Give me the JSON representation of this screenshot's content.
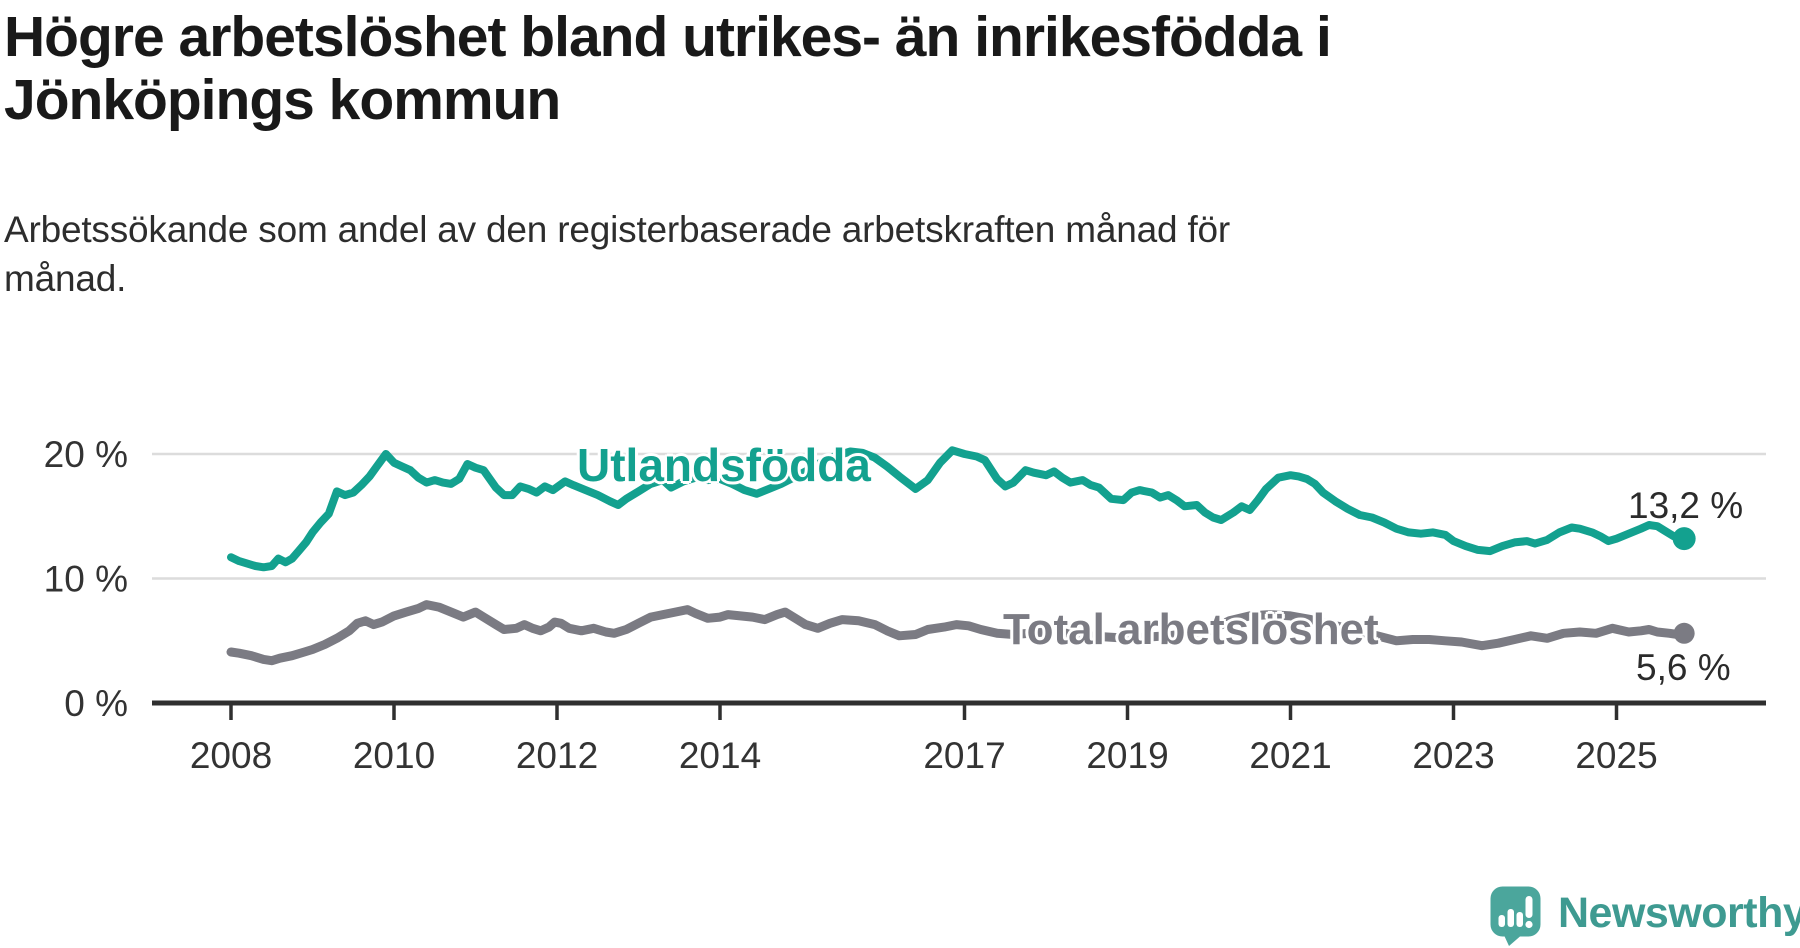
{
  "header": {
    "title_lines": [
      "Högre arbetslöshet bland utrikes- än inrikesfödda i",
      "Jönköpings kommun"
    ],
    "subtitle_lines": [
      "Arbetssökande som andel av den registerbaserade arbetskraften månad för",
      "månad."
    ]
  },
  "chart_data": {
    "type": "line",
    "title": "Högre arbetslöshet bland utrikes- än inrikesfödda i Jönköpings kommun",
    "subtitle": "Arbetssökande som andel av den registerbaserade arbetskraften månad för månad.",
    "xlabel": "",
    "ylabel": "",
    "x_axis": {
      "min": 2008,
      "max": 2026.3,
      "tick_values": [
        2008,
        2010,
        2012,
        2014,
        2017,
        2019,
        2021,
        2023,
        2025
      ],
      "tick_labels": [
        "2008",
        "2010",
        "2012",
        "2014",
        "2017",
        "2019",
        "2021",
        "2023",
        "2025"
      ]
    },
    "y_axis": {
      "min": 0,
      "max": 21.5,
      "tick_values": [
        0,
        10,
        20
      ],
      "tick_labels": [
        "0 %",
        "10 %",
        "20 %"
      ],
      "grid": true
    },
    "style": {
      "grid_color": "#dcdcdc",
      "axis_color": "#2f2f2f",
      "tick_label_color": "#333333"
    },
    "series": [
      {
        "name": "Utlandsfödda",
        "color": "#13a18f",
        "end_value": 13.2,
        "end_label": "13,2 %",
        "points": [
          [
            2008.0,
            11.7
          ],
          [
            2008.1,
            11.4
          ],
          [
            2008.2,
            11.2
          ],
          [
            2008.3,
            11.0
          ],
          [
            2008.4,
            10.9
          ],
          [
            2008.5,
            11.0
          ],
          [
            2008.58,
            11.6
          ],
          [
            2008.67,
            11.3
          ],
          [
            2008.75,
            11.6
          ],
          [
            2008.83,
            12.2
          ],
          [
            2008.92,
            12.9
          ],
          [
            2009.0,
            13.7
          ],
          [
            2009.1,
            14.5
          ],
          [
            2009.2,
            15.2
          ],
          [
            2009.3,
            17.0
          ],
          [
            2009.4,
            16.7
          ],
          [
            2009.5,
            16.9
          ],
          [
            2009.6,
            17.5
          ],
          [
            2009.7,
            18.2
          ],
          [
            2009.8,
            19.1
          ],
          [
            2009.9,
            20.0
          ],
          [
            2010.0,
            19.3
          ],
          [
            2010.1,
            19.0
          ],
          [
            2010.2,
            18.7
          ],
          [
            2010.3,
            18.1
          ],
          [
            2010.4,
            17.7
          ],
          [
            2010.5,
            17.9
          ],
          [
            2010.6,
            17.7
          ],
          [
            2010.7,
            17.6
          ],
          [
            2010.8,
            18.0
          ],
          [
            2010.9,
            19.2
          ],
          [
            2011.0,
            18.9
          ],
          [
            2011.1,
            18.7
          ],
          [
            2011.25,
            17.3
          ],
          [
            2011.35,
            16.7
          ],
          [
            2011.45,
            16.7
          ],
          [
            2011.55,
            17.4
          ],
          [
            2011.65,
            17.2
          ],
          [
            2011.75,
            16.9
          ],
          [
            2011.85,
            17.4
          ],
          [
            2011.95,
            17.1
          ],
          [
            2012.1,
            17.8
          ],
          [
            2012.2,
            17.5
          ],
          [
            2012.35,
            17.1
          ],
          [
            2012.5,
            16.7
          ],
          [
            2012.65,
            16.2
          ],
          [
            2012.75,
            15.9
          ],
          [
            2012.85,
            16.4
          ],
          [
            2013.0,
            17.0
          ],
          [
            2013.15,
            17.6
          ],
          [
            2013.3,
            17.9
          ],
          [
            2013.4,
            17.3
          ],
          [
            2013.55,
            17.8
          ],
          [
            2013.7,
            18.1
          ],
          [
            2013.85,
            17.9
          ],
          [
            2014.0,
            18.0
          ],
          [
            2014.15,
            17.6
          ],
          [
            2014.3,
            17.1
          ],
          [
            2014.45,
            16.8
          ],
          [
            2014.6,
            17.2
          ],
          [
            2014.75,
            17.6
          ],
          [
            2014.9,
            18.1
          ],
          [
            2015.05,
            18.6
          ],
          [
            2015.2,
            19.2
          ],
          [
            2015.4,
            19.8
          ],
          [
            2015.6,
            20.2
          ],
          [
            2015.75,
            20.1
          ],
          [
            2015.9,
            19.7
          ],
          [
            2016.05,
            19.0
          ],
          [
            2016.2,
            18.2
          ],
          [
            2016.4,
            17.2
          ],
          [
            2016.55,
            17.9
          ],
          [
            2016.7,
            19.3
          ],
          [
            2016.85,
            20.3
          ],
          [
            2017.0,
            20.0
          ],
          [
            2017.15,
            19.8
          ],
          [
            2017.25,
            19.5
          ],
          [
            2017.4,
            18.0
          ],
          [
            2017.5,
            17.4
          ],
          [
            2017.6,
            17.7
          ],
          [
            2017.75,
            18.7
          ],
          [
            2017.85,
            18.5
          ],
          [
            2018.0,
            18.3
          ],
          [
            2018.1,
            18.6
          ],
          [
            2018.2,
            18.1
          ],
          [
            2018.3,
            17.7
          ],
          [
            2018.45,
            17.9
          ],
          [
            2018.55,
            17.5
          ],
          [
            2018.65,
            17.3
          ],
          [
            2018.8,
            16.4
          ],
          [
            2018.95,
            16.3
          ],
          [
            2019.05,
            16.9
          ],
          [
            2019.15,
            17.1
          ],
          [
            2019.3,
            16.9
          ],
          [
            2019.4,
            16.5
          ],
          [
            2019.5,
            16.7
          ],
          [
            2019.6,
            16.3
          ],
          [
            2019.7,
            15.8
          ],
          [
            2019.85,
            15.9
          ],
          [
            2019.95,
            15.3
          ],
          [
            2020.05,
            14.9
          ],
          [
            2020.15,
            14.7
          ],
          [
            2020.3,
            15.3
          ],
          [
            2020.4,
            15.8
          ],
          [
            2020.5,
            15.5
          ],
          [
            2020.6,
            16.3
          ],
          [
            2020.7,
            17.2
          ],
          [
            2020.85,
            18.1
          ],
          [
            2021.0,
            18.3
          ],
          [
            2021.1,
            18.2
          ],
          [
            2021.2,
            18.0
          ],
          [
            2021.3,
            17.6
          ],
          [
            2021.4,
            16.9
          ],
          [
            2021.55,
            16.2
          ],
          [
            2021.7,
            15.6
          ],
          [
            2021.85,
            15.1
          ],
          [
            2022.0,
            14.9
          ],
          [
            2022.15,
            14.5
          ],
          [
            2022.3,
            14.0
          ],
          [
            2022.45,
            13.7
          ],
          [
            2022.6,
            13.6
          ],
          [
            2022.75,
            13.7
          ],
          [
            2022.9,
            13.5
          ],
          [
            2023.0,
            13.0
          ],
          [
            2023.15,
            12.6
          ],
          [
            2023.3,
            12.3
          ],
          [
            2023.45,
            12.2
          ],
          [
            2023.6,
            12.6
          ],
          [
            2023.75,
            12.9
          ],
          [
            2023.9,
            13.0
          ],
          [
            2024.0,
            12.8
          ],
          [
            2024.15,
            13.1
          ],
          [
            2024.3,
            13.7
          ],
          [
            2024.45,
            14.1
          ],
          [
            2024.55,
            14.0
          ],
          [
            2024.7,
            13.7
          ],
          [
            2024.8,
            13.4
          ],
          [
            2024.9,
            13.0
          ],
          [
            2025.0,
            13.2
          ],
          [
            2025.15,
            13.6
          ],
          [
            2025.3,
            14.0
          ],
          [
            2025.4,
            14.3
          ],
          [
            2025.5,
            14.2
          ],
          [
            2025.6,
            13.8
          ],
          [
            2025.7,
            13.4
          ],
          [
            2025.83,
            13.2
          ]
        ]
      },
      {
        "name": "Total arbetslöshet",
        "color": "#7b7b83",
        "end_value": 5.6,
        "end_label": "5,6 %",
        "points": [
          [
            2008.0,
            4.1
          ],
          [
            2008.1,
            4.0
          ],
          [
            2008.25,
            3.8
          ],
          [
            2008.4,
            3.5
          ],
          [
            2008.5,
            3.4
          ],
          [
            2008.6,
            3.6
          ],
          [
            2008.75,
            3.8
          ],
          [
            2008.9,
            4.1
          ],
          [
            2009.0,
            4.3
          ],
          [
            2009.15,
            4.7
          ],
          [
            2009.3,
            5.2
          ],
          [
            2009.45,
            5.8
          ],
          [
            2009.55,
            6.4
          ],
          [
            2009.65,
            6.6
          ],
          [
            2009.75,
            6.3
          ],
          [
            2009.85,
            6.5
          ],
          [
            2010.0,
            7.0
          ],
          [
            2010.15,
            7.3
          ],
          [
            2010.3,
            7.6
          ],
          [
            2010.4,
            7.9
          ],
          [
            2010.55,
            7.7
          ],
          [
            2010.7,
            7.3
          ],
          [
            2010.85,
            6.9
          ],
          [
            2011.0,
            7.3
          ],
          [
            2011.1,
            6.9
          ],
          [
            2011.25,
            6.3
          ],
          [
            2011.35,
            5.9
          ],
          [
            2011.5,
            6.0
          ],
          [
            2011.6,
            6.3
          ],
          [
            2011.7,
            6.0
          ],
          [
            2011.8,
            5.8
          ],
          [
            2011.9,
            6.1
          ],
          [
            2011.97,
            6.5
          ],
          [
            2012.05,
            6.4
          ],
          [
            2012.15,
            6.0
          ],
          [
            2012.3,
            5.8
          ],
          [
            2012.45,
            6.0
          ],
          [
            2012.6,
            5.7
          ],
          [
            2012.7,
            5.6
          ],
          [
            2012.85,
            5.9
          ],
          [
            2013.0,
            6.4
          ],
          [
            2013.15,
            6.9
          ],
          [
            2013.3,
            7.1
          ],
          [
            2013.45,
            7.3
          ],
          [
            2013.6,
            7.5
          ],
          [
            2013.7,
            7.2
          ],
          [
            2013.85,
            6.8
          ],
          [
            2014.0,
            6.9
          ],
          [
            2014.1,
            7.1
          ],
          [
            2014.25,
            7.0
          ],
          [
            2014.4,
            6.9
          ],
          [
            2014.55,
            6.7
          ],
          [
            2014.7,
            7.1
          ],
          [
            2014.8,
            7.3
          ],
          [
            2014.95,
            6.7
          ],
          [
            2015.05,
            6.3
          ],
          [
            2015.2,
            6.0
          ],
          [
            2015.35,
            6.4
          ],
          [
            2015.5,
            6.7
          ],
          [
            2015.7,
            6.6
          ],
          [
            2015.9,
            6.3
          ],
          [
            2016.05,
            5.8
          ],
          [
            2016.2,
            5.4
          ],
          [
            2016.4,
            5.5
          ],
          [
            2016.55,
            5.9
          ],
          [
            2016.75,
            6.1
          ],
          [
            2016.9,
            6.3
          ],
          [
            2017.05,
            6.2
          ],
          [
            2017.2,
            5.9
          ],
          [
            2017.4,
            5.6
          ],
          [
            2017.6,
            5.5
          ],
          [
            2017.8,
            5.6
          ],
          [
            2018.0,
            5.7
          ],
          [
            2018.25,
            5.6
          ],
          [
            2018.5,
            5.4
          ],
          [
            2018.75,
            5.3
          ],
          [
            2019.0,
            5.2
          ],
          [
            2019.25,
            5.3
          ],
          [
            2019.5,
            5.4
          ],
          [
            2019.75,
            5.6
          ],
          [
            2020.0,
            5.8
          ],
          [
            2020.25,
            6.6
          ],
          [
            2020.5,
            7.0
          ],
          [
            2020.75,
            7.1
          ],
          [
            2021.0,
            7.0
          ],
          [
            2021.25,
            6.7
          ],
          [
            2021.5,
            6.3
          ],
          [
            2021.75,
            5.9
          ],
          [
            2022.0,
            5.5
          ],
          [
            2022.3,
            5.0
          ],
          [
            2022.5,
            5.1
          ],
          [
            2022.7,
            5.1
          ],
          [
            2022.9,
            5.0
          ],
          [
            2023.1,
            4.9
          ],
          [
            2023.35,
            4.6
          ],
          [
            2023.55,
            4.8
          ],
          [
            2023.75,
            5.1
          ],
          [
            2023.95,
            5.4
          ],
          [
            2024.15,
            5.2
          ],
          [
            2024.35,
            5.6
          ],
          [
            2024.55,
            5.7
          ],
          [
            2024.75,
            5.6
          ],
          [
            2024.95,
            6.0
          ],
          [
            2025.15,
            5.7
          ],
          [
            2025.3,
            5.8
          ],
          [
            2025.4,
            5.9
          ],
          [
            2025.5,
            5.7
          ],
          [
            2025.65,
            5.6
          ],
          [
            2025.75,
            5.5
          ],
          [
            2025.83,
            5.6
          ]
        ]
      }
    ]
  },
  "branding": {
    "logo_text": "Newsworthy",
    "logo_bubble_color": "#4ba69c",
    "logo_text_color": "#3e9a91"
  }
}
